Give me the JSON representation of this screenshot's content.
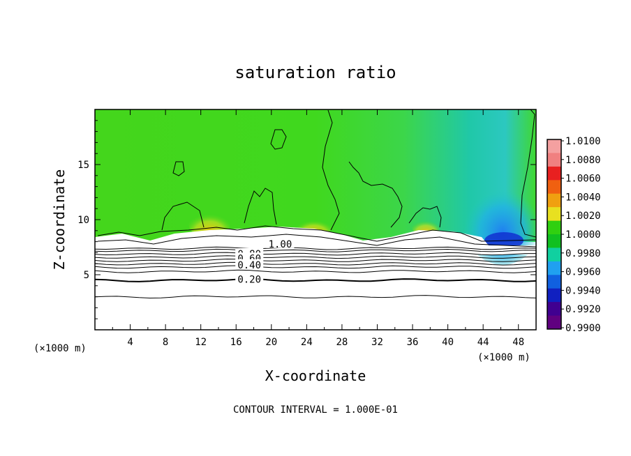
{
  "chart_data": {
    "type": "heatmap",
    "title": "saturation ratio",
    "xlabel": "X-coordinate",
    "ylabel": "Z-coordinate",
    "x_unit": "(×1000 m)",
    "x_unit_right": "(×1000 m)",
    "xlim": [
      0,
      50
    ],
    "ylim": [
      0,
      20
    ],
    "x_ticks": [
      4,
      8,
      12,
      16,
      20,
      24,
      28,
      32,
      36,
      40,
      44,
      48
    ],
    "y_ticks": [
      5,
      10,
      15
    ],
    "footer": "CONTOUR INTERVAL = 1.000E-01",
    "colorbar": {
      "levels": [
        "1.0100",
        "1.0080",
        "1.0060",
        "1.0040",
        "1.0020",
        "1.0000",
        "0.9980",
        "0.9960",
        "0.9940",
        "0.9920",
        "0.9900"
      ],
      "colors": [
        "#f4a0a0",
        "#f08080",
        "#e82020",
        "#f06010",
        "#f0a010",
        "#e8e020",
        "#30d010",
        "#10c020",
        "#10d0a0",
        "#20a0f0",
        "#1060e0",
        "#1020c0",
        "#400090",
        "#600080"
      ]
    },
    "contour_labels": [
      {
        "text": "1.00",
        "x": 21,
        "z": 7.8
      },
      {
        "text": "0.80",
        "x": 17.5,
        "z": 6.9
      },
      {
        "text": "0.60",
        "x": 17.5,
        "z": 6.5
      },
      {
        "text": "0.40",
        "x": 17.5,
        "z": 5.9
      },
      {
        "text": "0.20",
        "x": 17.5,
        "z": 4.6
      }
    ],
    "contour_levels_z": [
      3.0,
      4.5,
      5.3,
      5.7,
      6.0,
      6.3,
      6.6,
      6.9,
      7.2,
      7.4
    ]
  }
}
